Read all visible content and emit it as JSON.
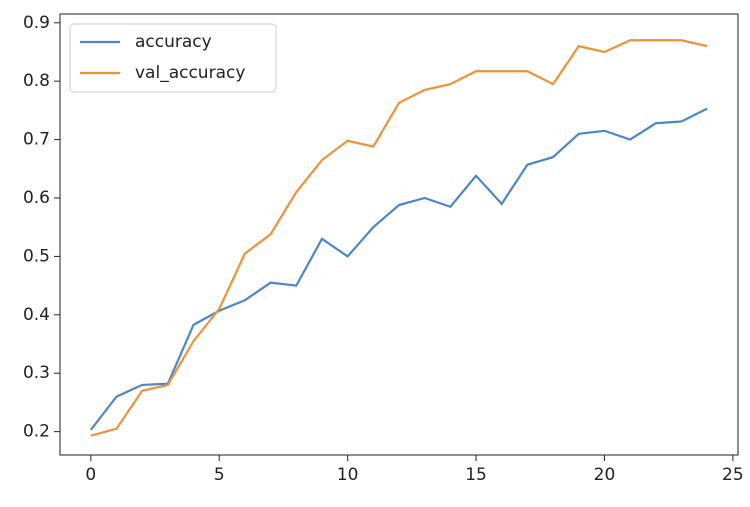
{
  "chart_data": {
    "type": "line",
    "x": [
      0,
      1,
      2,
      3,
      4,
      5,
      6,
      7,
      8,
      9,
      10,
      11,
      12,
      13,
      14,
      15,
      16,
      17,
      18,
      19,
      20,
      21,
      22,
      23,
      24
    ],
    "series": [
      {
        "name": "accuracy",
        "color": "#4a86c8",
        "values": [
          0.203,
          0.26,
          0.28,
          0.282,
          0.383,
          0.407,
          0.425,
          0.455,
          0.45,
          0.53,
          0.5,
          0.55,
          0.588,
          0.6,
          0.585,
          0.638,
          0.59,
          0.657,
          0.67,
          0.71,
          0.715,
          0.7,
          0.728,
          0.731,
          0.753
        ]
      },
      {
        "name": "val_accuracy",
        "color": "#f0913a",
        "values": [
          0.193,
          0.205,
          0.27,
          0.28,
          0.355,
          0.41,
          0.505,
          0.538,
          0.61,
          0.665,
          0.698,
          0.688,
          0.763,
          0.785,
          0.795,
          0.817,
          0.817,
          0.817,
          0.795,
          0.86,
          0.85,
          0.87,
          0.87,
          0.87,
          0.86
        ]
      }
    ],
    "xlim": [
      -1.2,
      25.2
    ],
    "xticks": [
      0,
      5,
      10,
      15,
      20,
      25
    ],
    "ylim": [
      0.16,
      0.915
    ],
    "yticks": [
      0.2,
      0.3,
      0.4,
      0.5,
      0.6,
      0.7,
      0.8,
      0.9
    ],
    "legend": "upper left"
  }
}
